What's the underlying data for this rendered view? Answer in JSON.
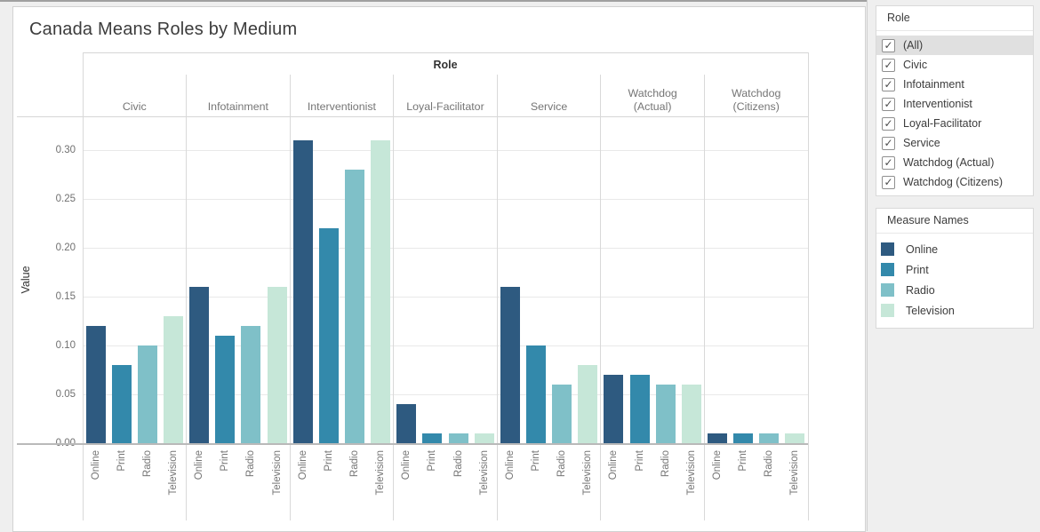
{
  "chart_data": {
    "type": "bar",
    "title": "Canada Means Roles by Medium",
    "facet_header": "Role",
    "ylabel": "Value",
    "categories": [
      "Civic",
      "Infotainment",
      "Interventionist",
      "Loyal-Facilitator",
      "Service",
      "Watchdog (Actual)",
      "Watchdog (Citizens)"
    ],
    "category_header_lines": [
      "Civic",
      "Infotainment",
      "Interventionist",
      "Loyal-Facilitator",
      "Service",
      "Watchdog\n(Actual)",
      "Watchdog\n(Citizens)"
    ],
    "x_tick_labels": [
      "Online",
      "Print",
      "Radio",
      "Television"
    ],
    "series": [
      {
        "name": "Online",
        "color": "#2e5a80",
        "values": [
          0.12,
          0.16,
          0.31,
          0.04,
          0.16,
          0.07,
          0.01
        ]
      },
      {
        "name": "Print",
        "color": "#3389ab",
        "values": [
          0.08,
          0.11,
          0.22,
          0.01,
          0.1,
          0.07,
          0.01
        ]
      },
      {
        "name": "Radio",
        "color": "#7fc0c8",
        "values": [
          0.1,
          0.12,
          0.28,
          0.01,
          0.06,
          0.06,
          0.01
        ]
      },
      {
        "name": "Television",
        "color": "#c6e7d8",
        "values": [
          0.13,
          0.16,
          0.31,
          0.01,
          0.08,
          0.06,
          0.01
        ]
      }
    ],
    "yticks": [
      "0.00",
      "0.05",
      "0.10",
      "0.15",
      "0.20",
      "0.25",
      "0.30"
    ],
    "ylim": [
      0,
      0.334
    ],
    "grid": true,
    "legend_position": "right"
  },
  "sidebar": {
    "role_filter": {
      "title": "Role",
      "items": [
        {
          "label": "(All)",
          "checked": true,
          "highlighted": true
        },
        {
          "label": "Civic",
          "checked": true,
          "highlighted": false
        },
        {
          "label": "Infotainment",
          "checked": true,
          "highlighted": false
        },
        {
          "label": "Interventionist",
          "checked": true,
          "highlighted": false
        },
        {
          "label": "Loyal-Facilitator",
          "checked": true,
          "highlighted": false
        },
        {
          "label": "Service",
          "checked": true,
          "highlighted": false
        },
        {
          "label": "Watchdog (Actual)",
          "checked": true,
          "highlighted": false
        },
        {
          "label": "Watchdog (Citizens)",
          "checked": true,
          "highlighted": false
        }
      ]
    },
    "measure_legend": {
      "title": "Measure Names",
      "items": [
        {
          "label": "Online",
          "color": "#2e5a80"
        },
        {
          "label": "Print",
          "color": "#3389ab"
        },
        {
          "label": "Radio",
          "color": "#7fc0c8"
        },
        {
          "label": "Television",
          "color": "#c6e7d8"
        }
      ]
    },
    "check_glyph": "✓"
  }
}
